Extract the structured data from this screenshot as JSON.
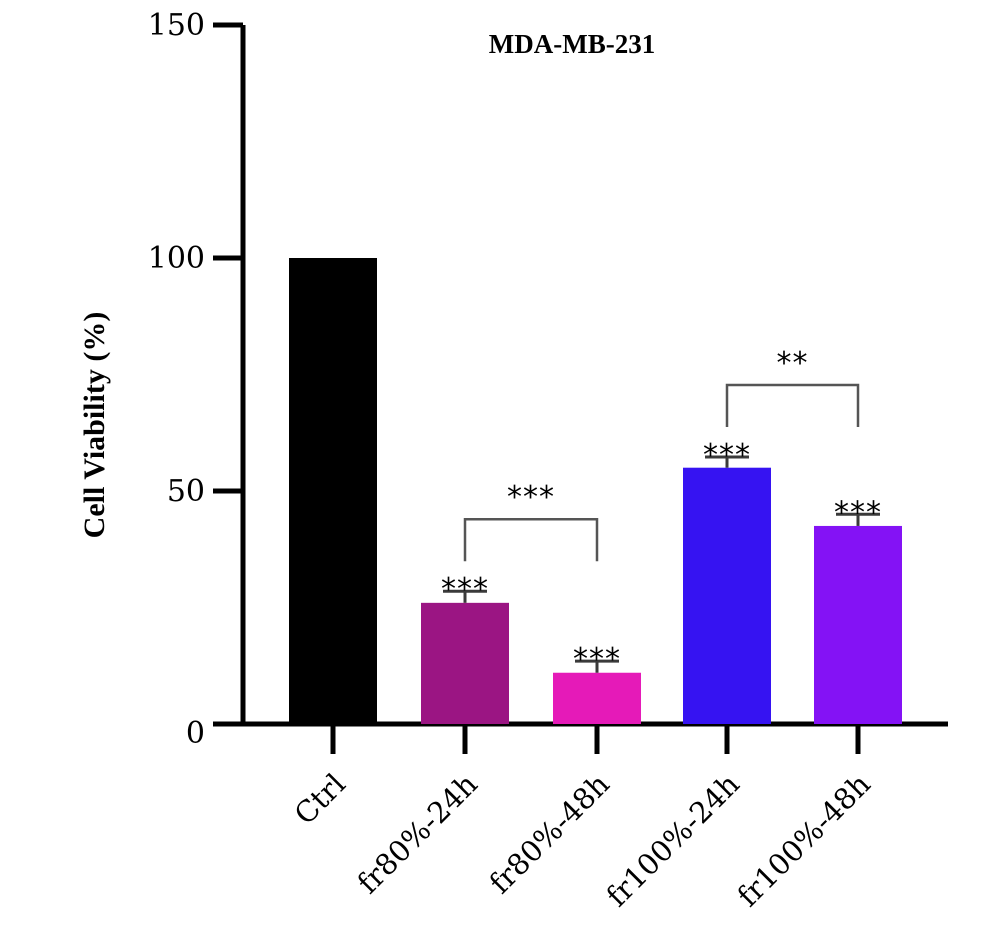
{
  "chart_data": {
    "type": "bar",
    "title": "MDA-MB-231",
    "xlabel": "",
    "ylabel": "Cell Viability (%)",
    "ylim": [
      0,
      150
    ],
    "yticks": [
      "0",
      "50",
      "100",
      "150"
    ],
    "grid": false,
    "categories": [
      "Ctrl",
      "fr80%-24h",
      "fr80%-48h",
      "fr100%-24h",
      "fr100%-48h"
    ],
    "values": [
      100,
      26,
      11,
      55,
      42.5
    ],
    "errors": [
      0,
      2.5,
      2.5,
      2.3,
      2.5
    ],
    "colors": [
      "#000000",
      "#9b1583",
      "#e51ab8",
      "#3613f2",
      "#8412f5"
    ],
    "significance": [
      "",
      "***",
      "***",
      "***",
      "***"
    ],
    "comparisons": [
      {
        "from": 1,
        "to": 2,
        "label": "***"
      },
      {
        "from": 3,
        "to": 4,
        "label": "**"
      }
    ]
  }
}
